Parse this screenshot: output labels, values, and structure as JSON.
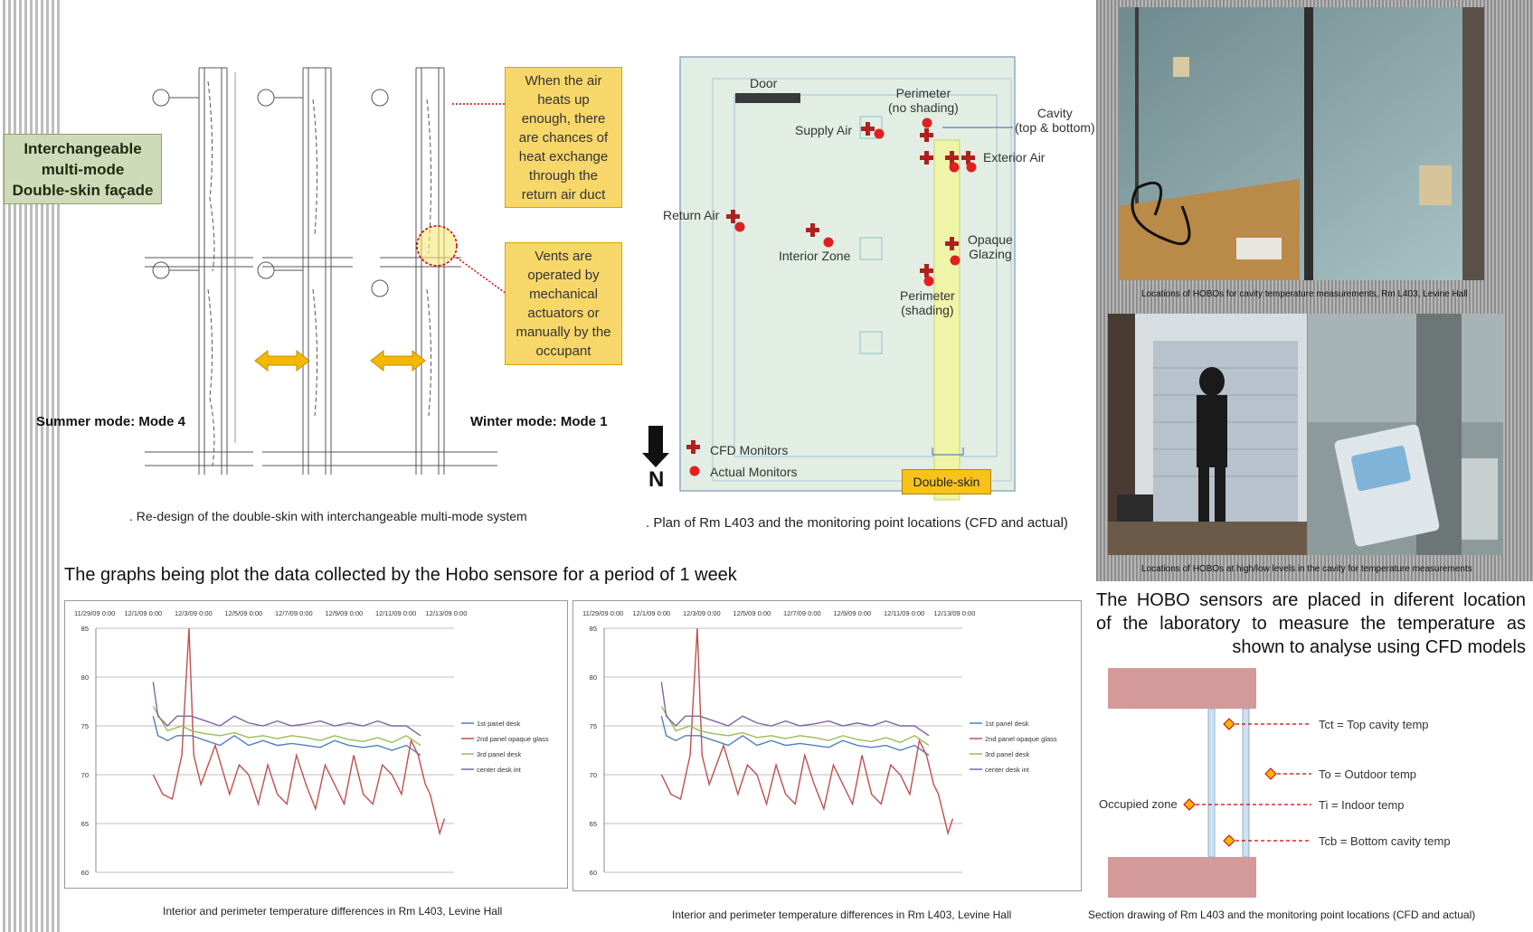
{
  "facade": {
    "label_lines": [
      "Interchangeable",
      "multi-mode",
      "Double-skin façade"
    ],
    "callout_top_lines": [
      "When the air",
      "heats up",
      "enough, there",
      "are chances of",
      "heat exchange",
      "through the",
      "return air duct"
    ],
    "callout_bottom_lines": [
      "Vents are",
      "operated by",
      "mechanical",
      "actuators or",
      "manually by the",
      "occupant"
    ],
    "summer_mode": "Summer mode: Mode 4",
    "winter_mode": "Winter mode: Mode 1",
    "caption": ". Re-design of the double-skin with interchangeable multi-mode system"
  },
  "plan": {
    "door": "Door",
    "perimeter_no_shading": [
      "Perimeter",
      "(no shading)"
    ],
    "cavity": [
      "Cavity",
      "(top & bottom)"
    ],
    "supply_air": "Supply Air",
    "exterior_air": "Exterior Air",
    "return_air": "Return Air",
    "interior_zone": "Interior Zone",
    "opaque_glazing": [
      "Opaque",
      "Glazing"
    ],
    "perimeter_shading": [
      "Perimeter",
      "(shading)"
    ],
    "legend_cfd": "CFD Monitors",
    "legend_actual": "Actual Monitors",
    "north": "N",
    "double_skin": "Double-skin",
    "caption": ". Plan of Rm L403 and the monitoring point locations (CFD and actual)"
  },
  "photos": {
    "caption_top": "Locations of HOBOs for cavity temperature measurements, Rm L403, Levine Hall",
    "caption_bottom": "Locations of HOBOs at high/low levels in the cavity for temperature measurements"
  },
  "hobo_text_lines": [
    "The HOBO  sensors are placed in diferent location",
    "of the laboratory to measure the temperature as",
    "shown to analyse using CFD models"
  ],
  "section": {
    "tct": "Tct = Top cavity temp",
    "to": "To = Outdoor temp",
    "occupied": "Occupied zone",
    "ti": "Ti = Indoor temp",
    "tcb": "Tcb = Bottom cavity temp",
    "caption": "Section drawing of Rm L403 and the monitoring point locations (CFD and actual)"
  },
  "charts_title": "The  graphs being plot the data  collected by the Hobo sensore for a period of 1 week",
  "chart_data": [
    {
      "type": "line",
      "xticks": [
        "11/29/09 0:00",
        "12/1/09 0:00",
        "12/3/09 0:00",
        "12/5/09 0:00",
        "12/7/09 0:00",
        "12/9/09 0:00",
        "12/11/09 0:00",
        "12/13/09 0:00"
      ],
      "yticks": [
        "85",
        "80",
        "75",
        "70",
        "65",
        "60"
      ],
      "ylim": [
        60,
        85
      ],
      "xlim": [
        0,
        7.5
      ],
      "grid": true,
      "legend": "right",
      "caption": "Interior and perimeter temperature differences in Rm L403, Levine Hall",
      "series": [
        {
          "name": "1st panel desk",
          "color": "#4f81bd",
          "x": [
            1.2,
            1.3,
            1.5,
            1.7,
            2.0,
            2.3,
            2.6,
            2.9,
            3.2,
            3.5,
            3.8,
            4.1,
            4.4,
            4.7,
            5.0,
            5.3,
            5.6,
            5.9,
            6.2,
            6.5,
            6.8
          ],
          "y": [
            76,
            74,
            73.5,
            74,
            74,
            73.5,
            73,
            74,
            73,
            73.5,
            73,
            73.2,
            73,
            72.8,
            73.5,
            73,
            72.8,
            73,
            72.5,
            73,
            72
          ]
        },
        {
          "name": "2nd panel opaque glass",
          "color": "#c0504d",
          "x": [
            1.2,
            1.4,
            1.6,
            1.8,
            1.95,
            2.05,
            2.2,
            2.5,
            2.8,
            3.0,
            3.2,
            3.4,
            3.6,
            3.8,
            4.0,
            4.2,
            4.4,
            4.6,
            4.8,
            5.0,
            5.2,
            5.4,
            5.6,
            5.8,
            6.0,
            6.2,
            6.4,
            6.6,
            6.75,
            6.9,
            7.0,
            7.1,
            7.2,
            7.3
          ],
          "y": [
            70,
            68,
            67.5,
            72,
            85,
            72,
            69,
            73,
            68,
            71,
            70,
            67,
            71,
            68,
            67,
            72,
            69,
            66.5,
            71,
            69,
            67,
            72,
            68,
            67,
            71,
            70,
            68,
            73.5,
            72,
            69,
            68,
            66,
            64,
            65.5
          ]
        },
        {
          "name": "3rd panel desk",
          "color": "#9bbb59",
          "x": [
            1.2,
            1.5,
            1.8,
            2.0,
            2.3,
            2.6,
            2.9,
            3.2,
            3.5,
            3.8,
            4.1,
            4.4,
            4.7,
            5.0,
            5.3,
            5.6,
            5.9,
            6.2,
            6.5,
            6.8
          ],
          "y": [
            77,
            74.5,
            75,
            74.5,
            74.2,
            74,
            74.3,
            73.8,
            74,
            73.7,
            74,
            73.8,
            73.5,
            74,
            73.6,
            73.4,
            73.8,
            73.3,
            74,
            73
          ]
        },
        {
          "name": "center desk int",
          "color": "#8064a2",
          "x": [
            1.2,
            1.3,
            1.5,
            1.7,
            2.0,
            2.3,
            2.6,
            2.9,
            3.2,
            3.5,
            3.8,
            4.1,
            4.4,
            4.7,
            5.0,
            5.3,
            5.6,
            5.9,
            6.2,
            6.5,
            6.8
          ],
          "y": [
            79.5,
            76,
            75,
            76,
            76,
            75.5,
            75,
            76,
            75.3,
            75,
            75.5,
            75,
            75.2,
            75.5,
            75,
            75.3,
            75,
            75.5,
            75,
            75,
            74
          ]
        }
      ]
    },
    {
      "type": "line",
      "xticks": [
        "11/29/09 0:00",
        "12/1/09 0:00",
        "12/3/09 0:00",
        "12/5/09 0:00",
        "12/7/09 0:00",
        "12/9/09 0:00",
        "12/11/09 0:00",
        "12/13/09 0:00"
      ],
      "yticks": [
        "85",
        "80",
        "75",
        "70",
        "65",
        "60"
      ],
      "ylim": [
        60,
        85
      ],
      "xlim": [
        0,
        7.5
      ],
      "grid": true,
      "legend": "right",
      "caption": "Interior and perimeter temperature differences in Rm L403, Levine Hall",
      "series": [
        {
          "name": "1st panel desk",
          "color": "#4f81bd",
          "x": [
            1.2,
            1.3,
            1.5,
            1.7,
            2.0,
            2.3,
            2.6,
            2.9,
            3.2,
            3.5,
            3.8,
            4.1,
            4.4,
            4.7,
            5.0,
            5.3,
            5.6,
            5.9,
            6.2,
            6.5,
            6.8
          ],
          "y": [
            76,
            74,
            73.5,
            74,
            74,
            73.5,
            73,
            74,
            73,
            73.5,
            73,
            73.2,
            73,
            72.8,
            73.5,
            73,
            72.8,
            73,
            72.5,
            73,
            72
          ]
        },
        {
          "name": "2nd panel opaque glass",
          "color": "#c0504d",
          "x": [
            1.2,
            1.4,
            1.6,
            1.8,
            1.95,
            2.05,
            2.2,
            2.5,
            2.8,
            3.0,
            3.2,
            3.4,
            3.6,
            3.8,
            4.0,
            4.2,
            4.4,
            4.6,
            4.8,
            5.0,
            5.2,
            5.4,
            5.6,
            5.8,
            6.0,
            6.2,
            6.4,
            6.6,
            6.75,
            6.9,
            7.0,
            7.1,
            7.2,
            7.3
          ],
          "y": [
            70,
            68,
            67.5,
            72,
            85,
            72,
            69,
            73,
            68,
            71,
            70,
            67,
            71,
            68,
            67,
            72,
            69,
            66.5,
            71,
            69,
            67,
            72,
            68,
            67,
            71,
            70,
            68,
            73.5,
            72,
            69,
            68,
            66,
            64,
            65.5
          ]
        },
        {
          "name": "3rd panel desk",
          "color": "#9bbb59",
          "x": [
            1.2,
            1.5,
            1.8,
            2.0,
            2.3,
            2.6,
            2.9,
            3.2,
            3.5,
            3.8,
            4.1,
            4.4,
            4.7,
            5.0,
            5.3,
            5.6,
            5.9,
            6.2,
            6.5,
            6.8
          ],
          "y": [
            77,
            74.5,
            75,
            74.5,
            74.2,
            74,
            74.3,
            73.8,
            74,
            73.7,
            74,
            73.8,
            73.5,
            74,
            73.6,
            73.4,
            73.8,
            73.3,
            74,
            73
          ]
        },
        {
          "name": "center desk int",
          "color": "#8064a2",
          "x": [
            1.2,
            1.3,
            1.5,
            1.7,
            2.0,
            2.3,
            2.6,
            2.9,
            3.2,
            3.5,
            3.8,
            4.1,
            4.4,
            4.7,
            5.0,
            5.3,
            5.6,
            5.9,
            6.2,
            6.5,
            6.8
          ],
          "y": [
            79.5,
            76,
            75,
            76,
            76,
            75.5,
            75,
            76,
            75.3,
            75,
            75.5,
            75,
            75.2,
            75.5,
            75,
            75.3,
            75,
            75.5,
            75,
            75,
            74
          ]
        }
      ]
    }
  ]
}
